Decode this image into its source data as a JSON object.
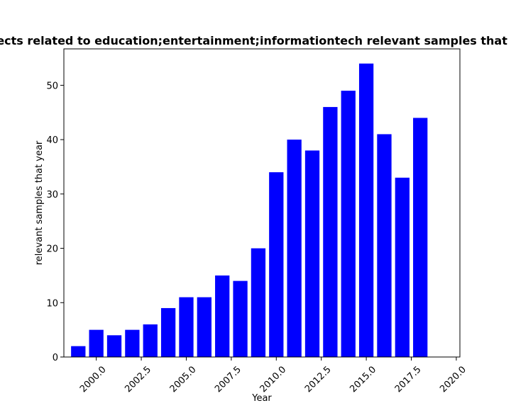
{
  "chart_data": {
    "type": "bar",
    "title": "Number of projects related to education;entertainment;informationtech relevant samples that year in all years",
    "xlabel": "Year",
    "ylabel": "relevant samples that year",
    "x": [
      1999,
      2000,
      2001,
      2002,
      2003,
      2004,
      2005,
      2006,
      2007,
      2008,
      2009,
      2010,
      2011,
      2012,
      2013,
      2014,
      2015,
      2016,
      2017,
      2018,
      2019
    ],
    "values": [
      2,
      5,
      4,
      5,
      6,
      9,
      11,
      11,
      15,
      14,
      20,
      34,
      40,
      38,
      46,
      49,
      54,
      41,
      33,
      44,
      0
    ],
    "xlim": [
      1998.2,
      2020.2
    ],
    "ylim": [
      0,
      56.7
    ],
    "xticks": [
      2000.0,
      2002.5,
      2005.0,
      2007.5,
      2010.0,
      2012.5,
      2015.0,
      2017.5,
      2020.0
    ],
    "xtick_labels": [
      "2000.0",
      "2002.5",
      "2005.0",
      "2007.5",
      "2010.0",
      "2012.5",
      "2015.0",
      "2017.5",
      "2020.0"
    ],
    "yticks": [
      0,
      10,
      20,
      30,
      40,
      50
    ],
    "ytick_labels": [
      "0",
      "10",
      "20",
      "30",
      "40",
      "50"
    ],
    "bar_color": "#0000ff",
    "grid": false,
    "legend": false
  }
}
